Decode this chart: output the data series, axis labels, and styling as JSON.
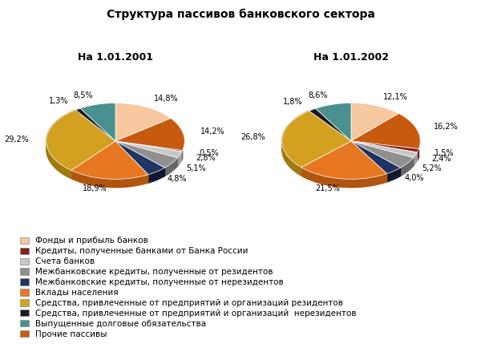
{
  "title": "Структура пассивов банковского сектора",
  "chart1_title": "На 1.01.2001",
  "chart2_title": "На 1.01.2002",
  "legend_labels": [
    "Фонды и прибыль банков",
    "Кредиты, полученные банками от Банка России",
    "Счета банков",
    "Межбанковские кредиты, полученные от резидентов",
    "Межбанковские кредиты, полученные от нерезидентов",
    "Вклады населения",
    "Средства, привлеченные от предприятий и организаций резидентов",
    "Средства, привлеченные от предприятий и организаций  нерезидентов",
    "Выпущенные долговые обязательства",
    "Прочие пассивы"
  ],
  "colors": [
    "#F5C8A0",
    "#8B1A1A",
    "#C8C8C8",
    "#909090",
    "#1F3464",
    "#E87722",
    "#D4A020",
    "#1A1A1A",
    "#4A9090",
    "#C85A10"
  ],
  "side_colors": [
    "#C8A070",
    "#6B1010",
    "#A0A0A0",
    "#686868",
    "#101830",
    "#B05510",
    "#A07810",
    "#101010",
    "#286868",
    "#A03A00"
  ],
  "values_2001": [
    14.8,
    0.5,
    2.8,
    5.1,
    4.8,
    18.9,
    29.2,
    1.3,
    8.5,
    14.2
  ],
  "values_2002": [
    12.1,
    1.5,
    2.4,
    5.2,
    4.0,
    21.5,
    26.8,
    1.8,
    8.6,
    16.2
  ],
  "labels_2001": [
    "14,8%",
    "0,5%",
    "2,8%",
    "5,1%",
    "4,8%",
    "18,9%",
    "29,2%",
    "1,3%",
    "8,5%",
    "14,2%"
  ],
  "labels_2002": [
    "12,1%",
    "1,5%",
    "2,4%",
    "5,2%",
    "4,0%",
    "21,5%",
    "26,8%",
    "1,8%",
    "8,6%",
    "16,2%"
  ],
  "background_color": "#FFFFFF",
  "title_fontsize": 10,
  "label_fontsize": 7,
  "legend_fontsize": 7.5,
  "segment_order_2001": [
    0,
    9,
    1,
    2,
    3,
    4,
    5,
    6,
    7,
    8
  ],
  "segment_order_2002": [
    0,
    9,
    1,
    2,
    3,
    4,
    5,
    6,
    7,
    8
  ]
}
